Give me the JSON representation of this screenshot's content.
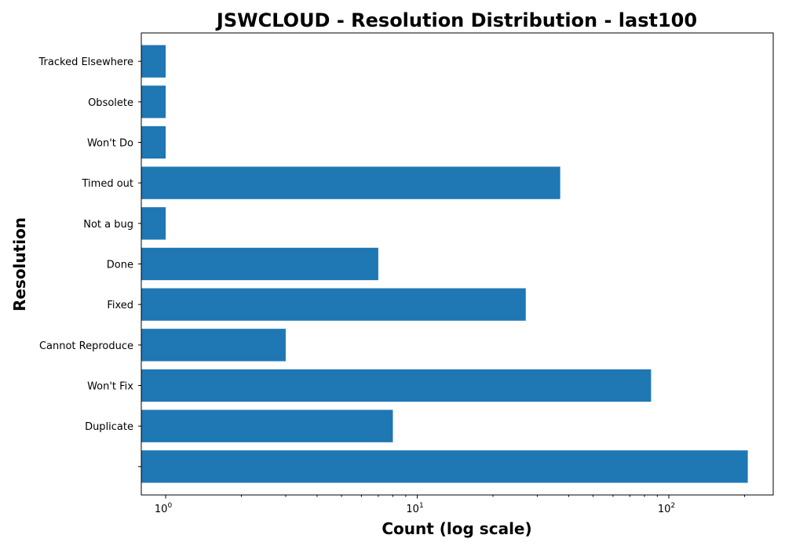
{
  "chart_data": {
    "type": "bar",
    "orientation": "horizontal",
    "title": "JSWCLOUD - Resolution Distribution - last100",
    "xlabel": "Count (log scale)",
    "ylabel": "Resolution",
    "xscale": "log",
    "xlim": [
      0.8,
      260
    ],
    "xticks": [
      {
        "value": 1,
        "base": "10",
        "exp": "0"
      },
      {
        "value": 10,
        "base": "10",
        "exp": "1"
      },
      {
        "value": 100,
        "base": "10",
        "exp": "2"
      }
    ],
    "categories": [
      "",
      "Duplicate",
      "Won't Fix",
      "Cannot Reproduce",
      "Fixed",
      "Done",
      "Not a bug",
      "Timed out",
      "Won't Do",
      "Obsolete",
      "Tracked Elsewhere"
    ],
    "values": [
      206,
      8,
      85,
      3,
      27,
      7,
      1,
      37,
      1,
      1,
      1
    ],
    "color": "#1f77b4",
    "grid": false,
    "legend": "none"
  }
}
